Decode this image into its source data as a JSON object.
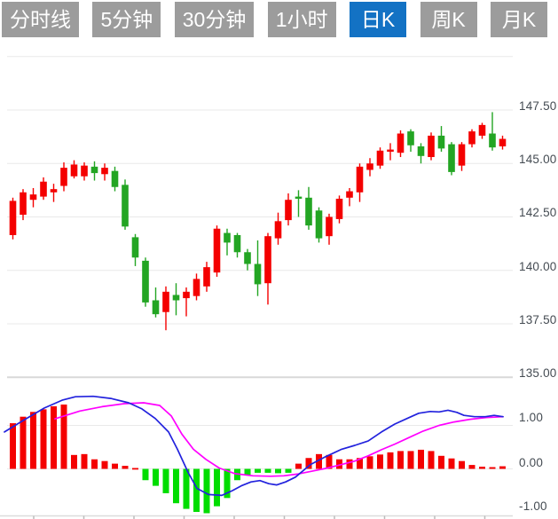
{
  "tabs": [
    {
      "label": "分时线",
      "active": false
    },
    {
      "label": "5分钟",
      "active": false
    },
    {
      "label": "30分钟",
      "active": false
    },
    {
      "label": "1小时",
      "active": false
    },
    {
      "label": "日K",
      "active": true
    },
    {
      "label": "周K",
      "active": false
    },
    {
      "label": "月K",
      "active": false
    }
  ],
  "price_axis": {
    "labels": [
      "147.50",
      "145.00",
      "142.50",
      "140.00",
      "137.50",
      "135.00"
    ]
  },
  "macd_axis": {
    "labels": [
      "1.00",
      "0.00",
      "-1.00"
    ]
  },
  "colors": {
    "up": "#f40000",
    "down": "#23a523",
    "macd_up": "#f40000",
    "macd_down": "#00dd00",
    "dif_line": "#2222dd",
    "dea_line": "#ff00ff",
    "grid": "#e9e9e9",
    "separator": "#d9d9d9",
    "axis_line": "#dcdcdc",
    "tick": "#bbbbbb",
    "axis_text": "#444b52",
    "tab_bg": "#9c9c9c",
    "tab_active_bg": "#1372c4",
    "tab_text": "#ffffff"
  },
  "chart_data": {
    "type": "candlestick-with-macd",
    "panes": [
      "daily-k-price",
      "macd-indicator"
    ],
    "price_ticks": [
      150.0,
      147.5,
      145.0,
      142.5,
      140.0,
      137.5,
      135.0
    ],
    "price_range": [
      135.0,
      150.0
    ],
    "macd_ticks": [
      1.0,
      0.0,
      -1.0
    ],
    "macd_range": [
      -1.1,
      1.8
    ],
    "candles_ohlc": [
      [
        141.65,
        143.4,
        141.45,
        143.25
      ],
      [
        142.6,
        143.8,
        142.35,
        143.65
      ],
      [
        143.3,
        143.85,
        142.95,
        143.55
      ],
      [
        143.45,
        144.35,
        143.3,
        144.15
      ],
      [
        143.65,
        144.05,
        143.2,
        143.8
      ],
      [
        143.95,
        145.05,
        143.7,
        144.8
      ],
      [
        144.4,
        145.15,
        144.3,
        144.95
      ],
      [
        144.4,
        145.05,
        144.2,
        144.9
      ],
      [
        144.85,
        145.1,
        144.2,
        144.55
      ],
      [
        144.5,
        145.0,
        144.2,
        144.8
      ],
      [
        144.65,
        144.85,
        143.7,
        143.9
      ],
      [
        144.0,
        144.25,
        141.9,
        142.05
      ],
      [
        141.55,
        141.7,
        140.2,
        140.6
      ],
      [
        140.45,
        140.6,
        138.3,
        138.5
      ],
      [
        138.6,
        139.2,
        137.8,
        137.95
      ],
      [
        138.05,
        139.25,
        137.2,
        139.0
      ],
      [
        138.85,
        139.4,
        137.9,
        138.6
      ],
      [
        138.7,
        139.2,
        137.85,
        139.0
      ],
      [
        138.8,
        139.85,
        138.6,
        139.6
      ],
      [
        139.25,
        140.4,
        139.0,
        140.15
      ],
      [
        139.9,
        142.1,
        139.7,
        141.95
      ],
      [
        141.75,
        141.95,
        140.7,
        141.3
      ],
      [
        141.65,
        141.75,
        140.6,
        140.85
      ],
      [
        140.85,
        141.0,
        140.0,
        140.3
      ],
      [
        140.3,
        141.4,
        138.8,
        139.35
      ],
      [
        139.4,
        141.75,
        138.4,
        141.6
      ],
      [
        141.5,
        142.7,
        141.2,
        142.3
      ],
      [
        142.35,
        143.6,
        142.1,
        143.3
      ],
      [
        143.45,
        143.75,
        142.5,
        143.35
      ],
      [
        143.4,
        143.9,
        141.9,
        142.1
      ],
      [
        142.8,
        142.95,
        141.3,
        141.5
      ],
      [
        141.6,
        142.65,
        141.2,
        142.5
      ],
      [
        142.4,
        143.5,
        142.2,
        143.35
      ],
      [
        143.4,
        143.85,
        143.0,
        143.7
      ],
      [
        143.65,
        145.0,
        143.2,
        144.85
      ],
      [
        144.7,
        145.25,
        144.4,
        145.0
      ],
      [
        144.9,
        145.75,
        144.75,
        145.6
      ],
      [
        145.55,
        145.95,
        145.15,
        145.65
      ],
      [
        145.5,
        146.55,
        145.3,
        146.4
      ],
      [
        146.5,
        146.6,
        145.55,
        145.85
      ],
      [
        145.8,
        145.95,
        145.0,
        145.35
      ],
      [
        145.3,
        146.45,
        145.15,
        146.3
      ],
      [
        146.3,
        146.75,
        145.55,
        145.7
      ],
      [
        145.9,
        146.0,
        144.45,
        144.6
      ],
      [
        144.9,
        146.0,
        144.65,
        145.9
      ],
      [
        145.9,
        146.6,
        145.75,
        146.5
      ],
      [
        146.3,
        146.9,
        146.15,
        146.8
      ],
      [
        146.4,
        147.4,
        145.6,
        145.75
      ],
      [
        145.8,
        146.3,
        145.65,
        146.15
      ]
    ],
    "macd": {
      "histogram": [
        1.05,
        1.2,
        1.31,
        1.37,
        1.44,
        1.48,
        0.32,
        0.34,
        0.22,
        0.18,
        0.12,
        0.07,
        0.02,
        -0.26,
        -0.39,
        -0.56,
        -0.79,
        -0.92,
        -0.99,
        -1.02,
        -0.86,
        -0.67,
        -0.26,
        -0.15,
        -0.09,
        -0.09,
        -0.1,
        -0.09,
        0.12,
        0.25,
        0.34,
        0.32,
        0.22,
        0.22,
        0.25,
        0.29,
        0.33,
        0.38,
        0.41,
        0.41,
        0.44,
        0.41,
        0.3,
        0.24,
        0.18,
        0.09,
        0.05,
        0.04,
        0.06
      ],
      "dif_blue": [
        [
          5,
          0.85
        ],
        [
          25,
          1.1
        ],
        [
          50,
          1.4
        ],
        [
          70,
          1.58
        ],
        [
          85,
          1.66
        ],
        [
          105,
          1.67
        ],
        [
          125,
          1.62
        ],
        [
          145,
          1.52
        ],
        [
          160,
          1.38
        ],
        [
          175,
          1.16
        ],
        [
          190,
          0.85
        ],
        [
          200,
          0.45
        ],
        [
          212,
          -0.08
        ],
        [
          222,
          -0.45
        ],
        [
          235,
          -0.59
        ],
        [
          250,
          -0.61
        ],
        [
          262,
          -0.5
        ],
        [
          272,
          -0.39
        ],
        [
          283,
          -0.3
        ],
        [
          293,
          -0.27
        ],
        [
          303,
          -0.34
        ],
        [
          312,
          -0.37
        ],
        [
          322,
          -0.3
        ],
        [
          333,
          -0.19
        ],
        [
          350,
          0.1
        ],
        [
          367,
          0.28
        ],
        [
          385,
          0.45
        ],
        [
          400,
          0.54
        ],
        [
          415,
          0.64
        ],
        [
          430,
          0.85
        ],
        [
          445,
          1.03
        ],
        [
          460,
          1.17
        ],
        [
          472,
          1.28
        ],
        [
          485,
          1.32
        ],
        [
          495,
          1.31
        ],
        [
          505,
          1.35
        ],
        [
          515,
          1.3
        ],
        [
          523,
          1.23
        ],
        [
          535,
          1.2
        ],
        [
          547,
          1.2
        ],
        [
          557,
          1.23
        ],
        [
          567,
          1.2
        ]
      ],
      "dea_magenta": [
        [
          62,
          1.15
        ],
        [
          90,
          1.33
        ],
        [
          115,
          1.43
        ],
        [
          140,
          1.5
        ],
        [
          162,
          1.52
        ],
        [
          180,
          1.46
        ],
        [
          193,
          1.22
        ],
        [
          205,
          0.8
        ],
        [
          218,
          0.45
        ],
        [
          232,
          0.22
        ],
        [
          247,
          0.02
        ],
        [
          265,
          -0.11
        ],
        [
          285,
          -0.16
        ],
        [
          305,
          -0.17
        ],
        [
          320,
          -0.16
        ],
        [
          335,
          -0.12
        ],
        [
          350,
          -0.06
        ],
        [
          367,
          0.01
        ],
        [
          385,
          0.1
        ],
        [
          400,
          0.18
        ],
        [
          415,
          0.3
        ],
        [
          430,
          0.44
        ],
        [
          445,
          0.57
        ],
        [
          460,
          0.71
        ],
        [
          477,
          0.87
        ],
        [
          495,
          1.0
        ],
        [
          512,
          1.08
        ],
        [
          530,
          1.14
        ],
        [
          548,
          1.18
        ],
        [
          567,
          1.2
        ]
      ]
    }
  }
}
